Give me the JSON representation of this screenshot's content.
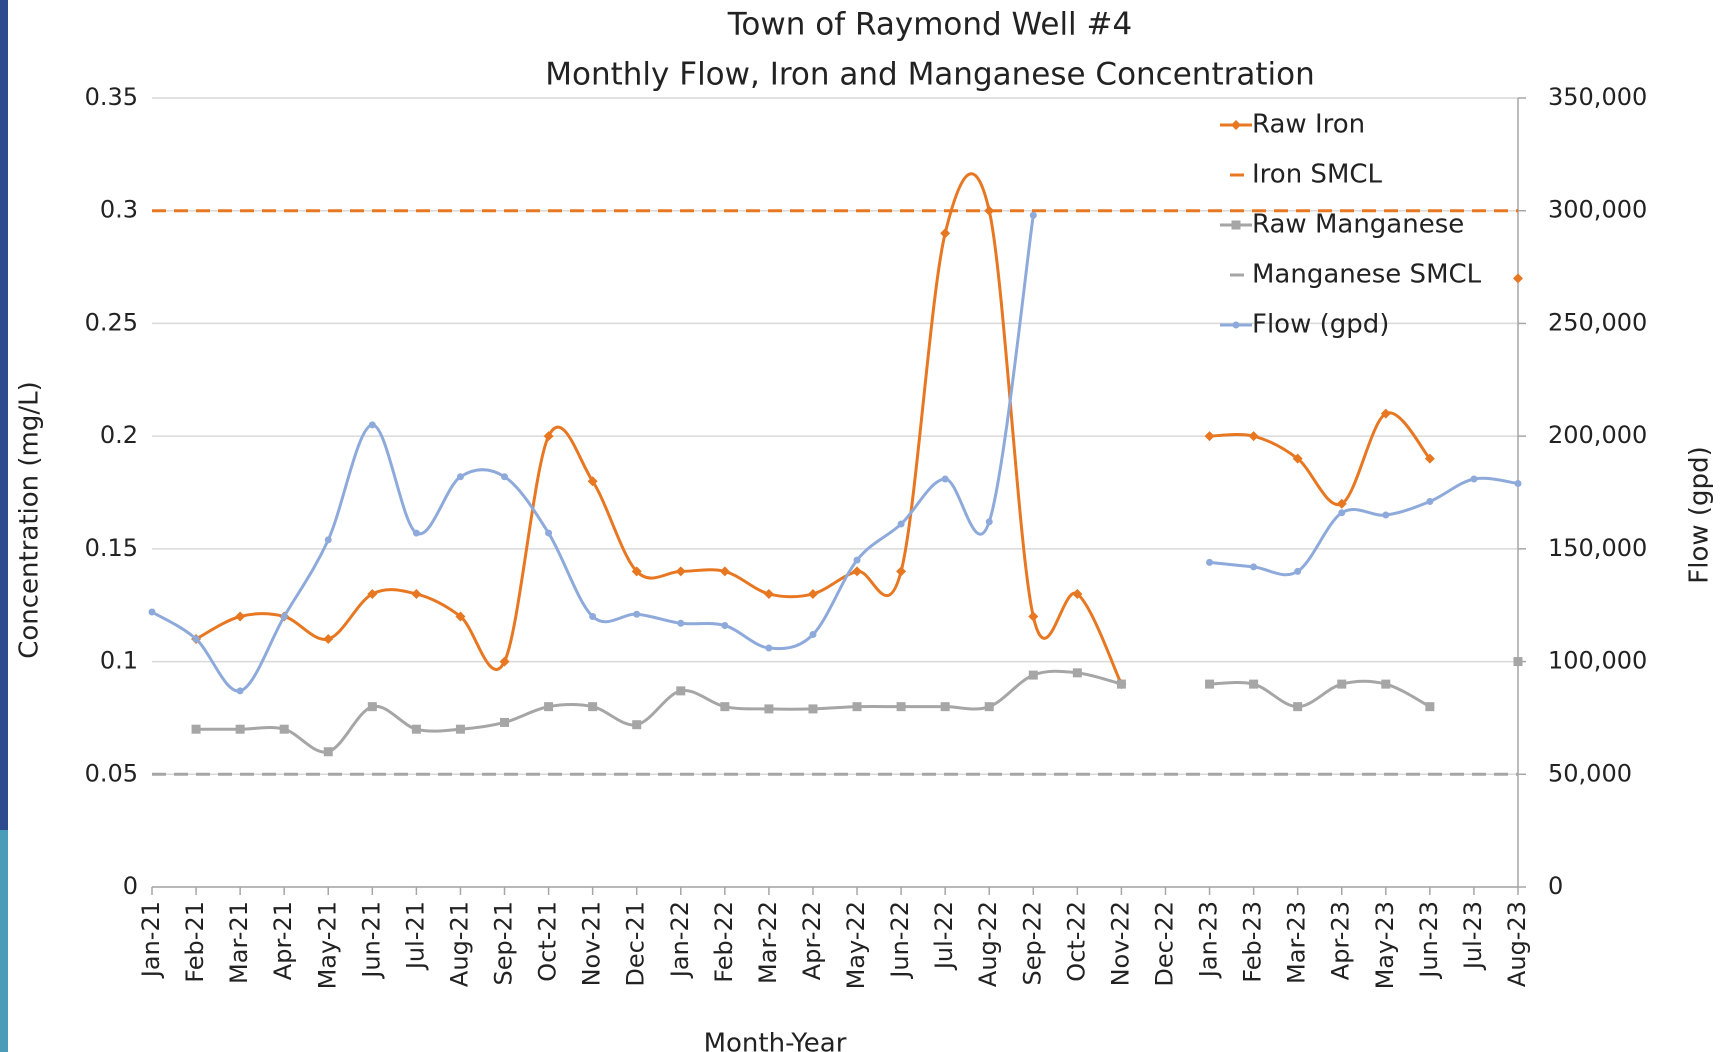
{
  "chart_data": {
    "type": "line",
    "title": "Town of Raymond Well #4",
    "subtitle": "Monthly Flow,  Iron and Manganese Concentration",
    "x_label": "Month-Year",
    "y_label": "Concentration (mg/L)",
    "y2_label": "Flow (gpd)",
    "categories": [
      "Jan-21",
      "Feb-21",
      "Mar-21",
      "Apr-21",
      "May-21",
      "Jun-21",
      "Jul-21",
      "Aug-21",
      "Sep-21",
      "Oct-21",
      "Nov-21",
      "Dec-21",
      "Jan-22",
      "Feb-22",
      "Mar-22",
      "Apr-22",
      "May-22",
      "Jun-22",
      "Jul-22",
      "Aug-22",
      "Sep-22",
      "Oct-22",
      "Nov-22",
      "Dec-22",
      "Jan-23",
      "Feb-23",
      "Mar-23",
      "Apr-23",
      "May-23",
      "Jun-23",
      "Jul-23",
      "Aug-23"
    ],
    "series": [
      {
        "name": "Raw Iron",
        "color": "#e87722",
        "marker": "diamond",
        "values": [
          null,
          0.11,
          0.12,
          0.12,
          0.11,
          0.13,
          0.13,
          0.12,
          0.1,
          0.2,
          0.18,
          0.14,
          0.14,
          0.14,
          0.13,
          0.13,
          0.14,
          0.14,
          0.29,
          0.3,
          0.12,
          0.13,
          0.09,
          null,
          0.2,
          0.2,
          0.19,
          0.17,
          0.21,
          0.19,
          null,
          0.27
        ]
      },
      {
        "name": "Raw Manganese",
        "color": "#a6a6a6",
        "marker": "square",
        "values": [
          null,
          0.07,
          0.07,
          0.07,
          0.06,
          0.08,
          0.07,
          0.07,
          0.073,
          0.08,
          0.08,
          0.072,
          0.087,
          0.08,
          0.079,
          0.079,
          0.08,
          0.08,
          0.08,
          0.08,
          0.094,
          0.095,
          0.09,
          null,
          0.09,
          0.09,
          0.08,
          0.09,
          0.09,
          0.08,
          null,
          0.1
        ]
      },
      {
        "name": "Flow (gpd)",
        "color": "#8eaadb",
        "marker": "circle",
        "axis": "y2",
        "values": [
          122000,
          110000,
          87000,
          120000,
          154000,
          205000,
          157000,
          182000,
          182000,
          157000,
          120000,
          121000,
          117000,
          116000,
          106000,
          112000,
          145000,
          161000,
          181000,
          162000,
          298000,
          null,
          null,
          null,
          144000,
          142000,
          140000,
          166000,
          165000,
          171000,
          181000,
          179000
        ]
      }
    ],
    "reference_lines": [
      {
        "name": "Iron SMCL",
        "color": "#e87722",
        "value": 0.3
      },
      {
        "name": "Manganese SMCL",
        "color": "#a6a6a6",
        "value": 0.05
      }
    ],
    "legend_order": [
      "Raw Iron",
      "Iron SMCL",
      "Raw Manganese",
      "Manganese SMCL",
      "Flow (gpd)"
    ],
    "ylim": [
      0,
      0.35
    ],
    "yticks": [
      0,
      0.05,
      0.1,
      0.15,
      0.2,
      0.25,
      0.3,
      0.35
    ],
    "y2lim": [
      0,
      350000
    ],
    "y2ticks": [
      0,
      {
        "value": 50000,
        "label": "50,000"
      },
      {
        "value": 100000,
        "label": "100,000"
      },
      {
        "value": 150000,
        "label": "150,000"
      },
      {
        "value": 200000,
        "label": "200,000"
      },
      {
        "value": 250000,
        "label": "250,000"
      },
      {
        "value": 300000,
        "label": "300,000"
      },
      {
        "value": 350000,
        "label": "350,000"
      }
    ],
    "grid": true,
    "legend": "upper right",
    "smooth": true
  }
}
